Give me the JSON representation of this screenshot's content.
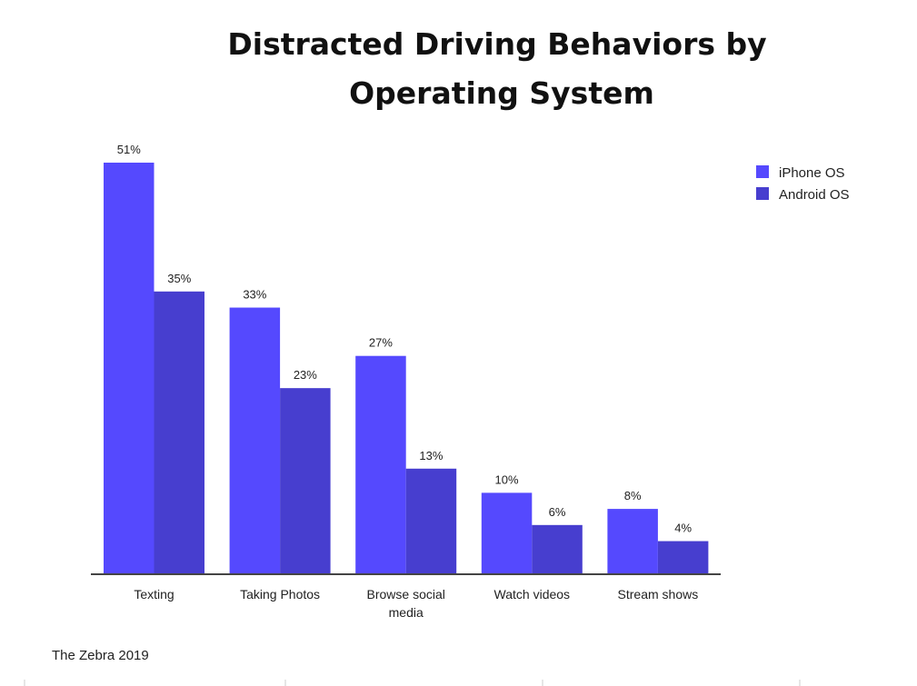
{
  "chart_data": {
    "type": "bar",
    "title_lines": [
      "Distracted Driving Behaviors by",
      "Operating System"
    ],
    "categories": [
      [
        "Texting"
      ],
      [
        "Taking Photos"
      ],
      [
        "Browse social",
        "media"
      ],
      [
        "Watch videos"
      ],
      [
        "Stream shows"
      ]
    ],
    "series": [
      {
        "name": "iPhone OS",
        "color": "#5549FE",
        "values": [
          51,
          33,
          27,
          10,
          8
        ]
      },
      {
        "name": "Android OS",
        "color": "#473ECF",
        "values": [
          35,
          23,
          13,
          6,
          4
        ]
      }
    ],
    "value_suffix": "%",
    "ylim": [
      0,
      51
    ],
    "grid": false,
    "legend": "top-right",
    "source": "The Zebra 2019"
  }
}
